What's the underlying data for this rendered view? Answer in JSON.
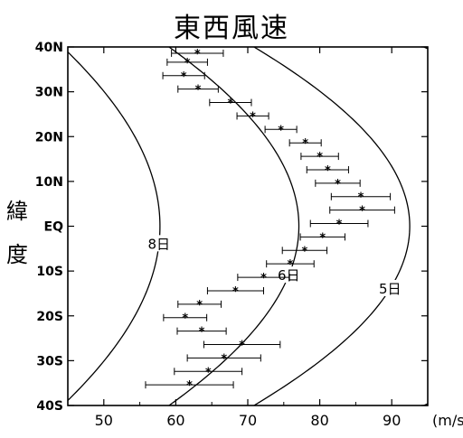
{
  "chart_data": {
    "type": "scatter",
    "title": "東西風速",
    "ylabel": "緯度",
    "xunit": "(m/s)",
    "xlim": [
      45,
      95
    ],
    "ylim": [
      -40,
      40
    ],
    "xticks": [
      50,
      60,
      70,
      80,
      90
    ],
    "yticks": [
      {
        "value": 40,
        "label": "40N"
      },
      {
        "value": 30,
        "label": "30N"
      },
      {
        "value": 20,
        "label": "20N"
      },
      {
        "value": 10,
        "label": "10N"
      },
      {
        "value": 0,
        "label": "EQ"
      },
      {
        "value": -10,
        "label": "10S"
      },
      {
        "value": -20,
        "label": "20S"
      },
      {
        "value": -30,
        "label": "30S"
      },
      {
        "value": -40,
        "label": "40S"
      }
    ],
    "grid": false,
    "points": [
      {
        "lat": 38.6,
        "speed": 63.0,
        "err": 3.6
      },
      {
        "lat": 36.6,
        "speed": 61.6,
        "err": 2.8
      },
      {
        "lat": 33.6,
        "speed": 61.1,
        "err": 2.9
      },
      {
        "lat": 30.6,
        "speed": 63.1,
        "err": 2.8
      },
      {
        "lat": 27.6,
        "speed": 67.6,
        "err": 2.9
      },
      {
        "lat": 24.6,
        "speed": 70.7,
        "err": 2.2
      },
      {
        "lat": 21.6,
        "speed": 74.6,
        "err": 2.2
      },
      {
        "lat": 18.6,
        "speed": 78.0,
        "err": 2.2
      },
      {
        "lat": 15.6,
        "speed": 80.0,
        "err": 2.6
      },
      {
        "lat": 12.6,
        "speed": 81.1,
        "err": 2.9
      },
      {
        "lat": 9.6,
        "speed": 82.5,
        "err": 3.1
      },
      {
        "lat": 6.6,
        "speed": 85.7,
        "err": 4.1
      },
      {
        "lat": 3.6,
        "speed": 85.9,
        "err": 4.5
      },
      {
        "lat": 0.6,
        "speed": 82.7,
        "err": 4.0
      },
      {
        "lat": -2.4,
        "speed": 80.4,
        "err": 3.1
      },
      {
        "lat": -5.4,
        "speed": 77.9,
        "err": 3.1
      },
      {
        "lat": -8.4,
        "speed": 75.9,
        "err": 3.3
      },
      {
        "lat": -11.4,
        "speed": 72.2,
        "err": 3.6
      },
      {
        "lat": -14.4,
        "speed": 68.3,
        "err": 3.9
      },
      {
        "lat": -17.4,
        "speed": 63.3,
        "err": 3.0
      },
      {
        "lat": -20.4,
        "speed": 61.3,
        "err": 3.0
      },
      {
        "lat": -23.4,
        "speed": 63.6,
        "err": 3.4
      },
      {
        "lat": -26.4,
        "speed": 69.2,
        "err": 5.3
      },
      {
        "lat": -29.4,
        "speed": 66.7,
        "err": 5.1
      },
      {
        "lat": -32.4,
        "speed": 64.5,
        "err": 4.7
      },
      {
        "lat": -35.4,
        "speed": 61.9,
        "err": 6.1
      }
    ],
    "curves": [
      {
        "label": "8日",
        "equatorSpeed": 57.8,
        "labelLat": -4
      },
      {
        "label": "6日",
        "equatorSpeed": 77.1,
        "labelLat": -11
      },
      {
        "label": "5日",
        "equatorSpeed": 92.5,
        "labelLat": -14
      }
    ]
  }
}
